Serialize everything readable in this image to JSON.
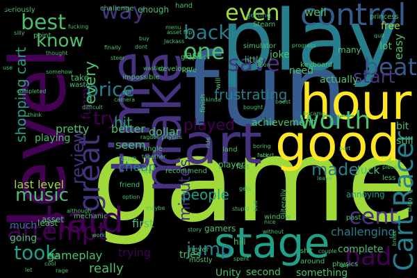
{
  "background": "#000000",
  "palette": [
    "#440154",
    "#46327e",
    "#365c8d",
    "#277f8e",
    "#1fa187",
    "#4ac16d",
    "#a0da39",
    "#fde725"
  ],
  "words": [
    {
      "text": "game",
      "color": "#a0da39"
    },
    {
      "text": "fun",
      "color": "#365c8d"
    },
    {
      "text": "play",
      "color": "#277f8e"
    },
    {
      "text": "level",
      "color": "#440154"
    },
    {
      "text": "hour",
      "color": "#fde725"
    },
    {
      "text": "good",
      "color": "#fde725"
    },
    {
      "text": "time",
      "color": "#46327e"
    },
    {
      "text": "make",
      "color": "#46327e"
    },
    {
      "text": "cart",
      "color": "#46327e"
    },
    {
      "text": "stage",
      "color": "#1fa187"
    },
    {
      "text": "control",
      "color": "#365c8d"
    },
    {
      "text": "Cart Racer",
      "color": "#277f8e"
    },
    {
      "text": "hard",
      "color": "#440154"
    },
    {
      "text": "attempt",
      "color": "#440154"
    },
    {
      "text": "worth",
      "color": "#4ac16d"
    },
    {
      "text": "bad",
      "color": "#440154"
    },
    {
      "text": "beat",
      "color": "#365c8d"
    },
    {
      "text": "great",
      "color": "#46327e"
    },
    {
      "text": "save",
      "color": "#46327e"
    },
    {
      "text": "one",
      "color": "#4ac16d"
    },
    {
      "text": "even",
      "color": "#a0da39"
    },
    {
      "text": "way",
      "color": "#46327e"
    },
    {
      "text": "best",
      "color": "#4ac16d"
    },
    {
      "text": "know",
      "color": "#4ac16d"
    },
    {
      "text": "back",
      "color": "#277f8e"
    },
    {
      "text": "price",
      "color": "#277f8e"
    },
    {
      "text": "played",
      "color": "#440154"
    },
    {
      "text": "review",
      "color": "#46327e"
    },
    {
      "text": "music",
      "color": "#4ac16d"
    },
    {
      "text": "jump",
      "color": "#277f8e"
    },
    {
      "text": "took",
      "color": "#1fa187"
    },
    {
      "text": "minutes",
      "color": "#46327e"
    },
    {
      "text": "cent",
      "color": "#46327e"
    },
    {
      "text": "made",
      "color": "#277f8e"
    },
    {
      "text": "start",
      "color": "#46327e"
    },
    {
      "text": "try",
      "color": "#440154"
    },
    {
      "text": "funny",
      "color": "#440154"
    },
    {
      "text": "every",
      "color": "#4ac16d"
    },
    {
      "text": "frustrating",
      "color": "#277f8e"
    },
    {
      "text": "shopping cart",
      "color": "#1fa187"
    },
    {
      "text": "people",
      "color": "#1fa187"
    },
    {
      "text": "last level",
      "color": "#a0da39"
    },
    {
      "text": "hit",
      "color": "#1fa187"
    },
    {
      "text": "really",
      "color": "#4ac16d"
    },
    {
      "text": "trying",
      "color": "#440154"
    },
    {
      "text": "much",
      "color": "#277f8e"
    },
    {
      "text": "going",
      "color": "#4ac16d"
    },
    {
      "text": "first",
      "color": "#4ac16d"
    },
    {
      "text": "better",
      "color": "#4ac16d"
    },
    {
      "text": "achievement",
      "color": "#4ac16d"
    },
    {
      "text": "need",
      "color": "#4ac16d"
    },
    {
      "text": "complete",
      "color": "#4ac16d"
    },
    {
      "text": "pretty",
      "color": "#4ac16d"
    },
    {
      "text": "luck",
      "color": "#4ac16d"
    },
    {
      "text": "dollar",
      "color": "#4ac16d"
    },
    {
      "text": "challenging",
      "color": "#277f8e"
    },
    {
      "text": "little",
      "color": "#4ac16d"
    },
    {
      "text": "joke",
      "color": "#4ac16d"
    },
    {
      "text": "actually",
      "color": "#4ac16d"
    },
    {
      "text": "last",
      "color": "#4ac16d"
    },
    {
      "text": "cheap",
      "color": "#277f8e"
    },
    {
      "text": "gameplay",
      "color": "#4ac16d"
    },
    {
      "text": "playing",
      "color": "#4ac16d"
    },
    {
      "text": "seem",
      "color": "#4ac16d"
    },
    {
      "text": "tries",
      "color": "#4ac16d"
    },
    {
      "text": "second",
      "color": "#4ac16d"
    },
    {
      "text": "Unity",
      "color": "#4ac16d"
    },
    {
      "text": "asset",
      "color": "#4ac16d"
    },
    {
      "text": "annoying",
      "color": "#1fa187"
    },
    {
      "text": "well",
      "color": "#4ac16d"
    },
    {
      "text": "free",
      "color": "#a0da39"
    },
    {
      "text": "lot",
      "color": "#4ac16d"
    },
    {
      "text": "easy",
      "color": "#4ac16d"
    },
    {
      "text": "many",
      "color": "#4ac16d"
    },
    {
      "text": "bit",
      "color": "#4ac16d"
    },
    {
      "text": "still",
      "color": "#4ac16d"
    },
    {
      "text": "something",
      "color": "#4ac16d"
    },
    {
      "text": "enough",
      "color": "#4ac16d"
    },
    {
      "text": "challenge",
      "color": "#4ac16d"
    },
    {
      "text": "hand",
      "color": "#4ac16d"
    },
    {
      "text": "getting",
      "color": "#1fa187"
    },
    {
      "text": "Steam",
      "color": "#4ac16d"
    },
    {
      "text": "graphic",
      "color": "#4ac16d"
    },
    {
      "text": "developer",
      "color": "#4ac16d"
    },
    {
      "text": "impossible",
      "color": "#4ac16d"
    },
    {
      "text": "take",
      "color": "#4ac16d"
    },
    {
      "text": "finish",
      "color": "#4ac16d"
    },
    {
      "text": "around",
      "color": "#4ac16d"
    },
    {
      "text": "past",
      "color": "#4ac16d"
    },
    {
      "text": "ramp",
      "color": "#4ac16d"
    },
    {
      "text": "angle",
      "color": "#4ac16d"
    },
    {
      "text": "land",
      "color": "#4ac16d"
    },
    {
      "text": "player",
      "color": "#4ac16d"
    },
    {
      "text": "fact",
      "color": "#4ac16d"
    },
    {
      "text": "recommend",
      "color": "#4ac16d"
    },
    {
      "text": "gamers",
      "color": "#4ac16d"
    },
    {
      "text": "never",
      "color": "#4ac16d"
    },
    {
      "text": "mostly",
      "color": "#4ac16d"
    },
    {
      "text": "hill",
      "color": "#4ac16d"
    },
    {
      "text": "friend",
      "color": "#4ac16d"
    },
    {
      "text": "mechanic",
      "color": "#4ac16d"
    },
    {
      "text": "least",
      "color": "#4ac16d"
    },
    {
      "text": "waste",
      "color": "#4ac16d"
    },
    {
      "text": "point",
      "color": "#4ac16d"
    },
    {
      "text": "seriously",
      "color": "#4ac16d"
    },
    {
      "text": "silly",
      "color": "#4ac16d"
    },
    {
      "text": "finally",
      "color": "#4ac16d"
    },
    {
      "text": "steer",
      "color": "#4ac16d"
    },
    {
      "text": "fail",
      "color": "#4ac16d"
    },
    {
      "text": "dont",
      "color": "#4ac16d"
    },
    {
      "text": "buy",
      "color": "#4ac16d"
    },
    {
      "text": "love",
      "color": "#4ac16d"
    },
    {
      "text": "will",
      "color": "#4ac16d"
    },
    {
      "text": "keyboard",
      "color": "#4ac16d"
    },
    {
      "text": "simulator",
      "color": "#4ac16d"
    },
    {
      "text": "progress",
      "color": "#4ac16d"
    },
    {
      "text": "quit",
      "color": "#4ac16d"
    },
    {
      "text": "princess",
      "color": "#4ac16d"
    },
    {
      "text": "window",
      "color": "#4ac16d"
    },
    {
      "text": "literally",
      "color": "#4ac16d"
    },
    {
      "text": "physics",
      "color": "#4ac16d"
    },
    {
      "text": "shit",
      "color": "#4ac16d"
    },
    {
      "text": "rage",
      "color": "#4ac16d"
    },
    {
      "text": "cool",
      "color": "#4ac16d"
    },
    {
      "text": "end",
      "color": "#4ac16d"
    },
    {
      "text": "completed",
      "color": "#4ac16d"
    },
    {
      "text": "think",
      "color": "#4ac16d"
    },
    {
      "text": "difficult",
      "color": "#4ac16d"
    },
    {
      "text": "boring",
      "color": "#4ac16d"
    },
    {
      "text": "short",
      "color": "#4ac16d"
    },
    {
      "text": "less",
      "color": "#4ac16d"
    },
    {
      "text": "piece",
      "color": "#4ac16d"
    },
    {
      "text": "thing",
      "color": "#4ac16d"
    },
    {
      "text": "became",
      "color": "#4ac16d"
    },
    {
      "text": "boost",
      "color": "#4ac16d"
    },
    {
      "text": "Jackass",
      "color": "#4ac16d"
    },
    {
      "text": "asset flip",
      "color": "#4ac16d"
    },
    {
      "text": "menu",
      "color": "#4ac16d"
    },
    {
      "text": "camera",
      "color": "#4ac16d"
    },
    {
      "text": "kinda",
      "color": "#4ac16d"
    },
    {
      "text": "option",
      "color": "#4ac16d"
    },
    {
      "text": "part",
      "color": "#4ac16d"
    },
    {
      "text": "gets",
      "color": "#4ac16d"
    },
    {
      "text": "although",
      "color": "#4ac16d"
    },
    {
      "text": "fuck",
      "color": "#4ac16d"
    },
    {
      "text": "wasting",
      "color": "#4ac16d"
    },
    {
      "text": "ragdoll physics",
      "color": "#4ac16d"
    },
    {
      "text": "together",
      "color": "#4ac16d"
    },
    {
      "text": "hope",
      "color": "#4ac16d"
    },
    {
      "text": "bought",
      "color": "#4ac16d"
    },
    {
      "text": "Upon",
      "color": "#4ac16d"
    },
    {
      "text": "thought",
      "color": "#4ac16d"
    },
    {
      "text": "somehow",
      "color": "#4ac16d"
    },
    {
      "text": "story",
      "color": "#4ac16d"
    },
    {
      "text": "work",
      "color": "#4ac16d"
    },
    {
      "text": "maybe",
      "color": "#4ac16d"
    },
    {
      "text": "day",
      "color": "#4ac16d"
    },
    {
      "text": "couple",
      "color": "#4ac16d"
    },
    {
      "text": "spent",
      "color": "#4ac16d"
    },
    {
      "text": "ride",
      "color": "#4ac16d"
    },
    {
      "text": "use",
      "color": "#4ac16d"
    },
    {
      "text": "leave",
      "color": "#4ac16d"
    },
    {
      "text": "break",
      "color": "#4ac16d"
    },
    {
      "text": "fucking",
      "color": "#4ac16d"
    },
    {
      "text": "stupid",
      "color": "#4ac16d"
    },
    {
      "text": "bed",
      "color": "#4ac16d"
    },
    {
      "text": "without",
      "color": "#4ac16d"
    },
    {
      "text": "nice",
      "color": "#4ac16d"
    },
    {
      "text": "let",
      "color": "#4ac16d"
    },
    {
      "text": "go",
      "color": "#4ac16d"
    }
  ]
}
